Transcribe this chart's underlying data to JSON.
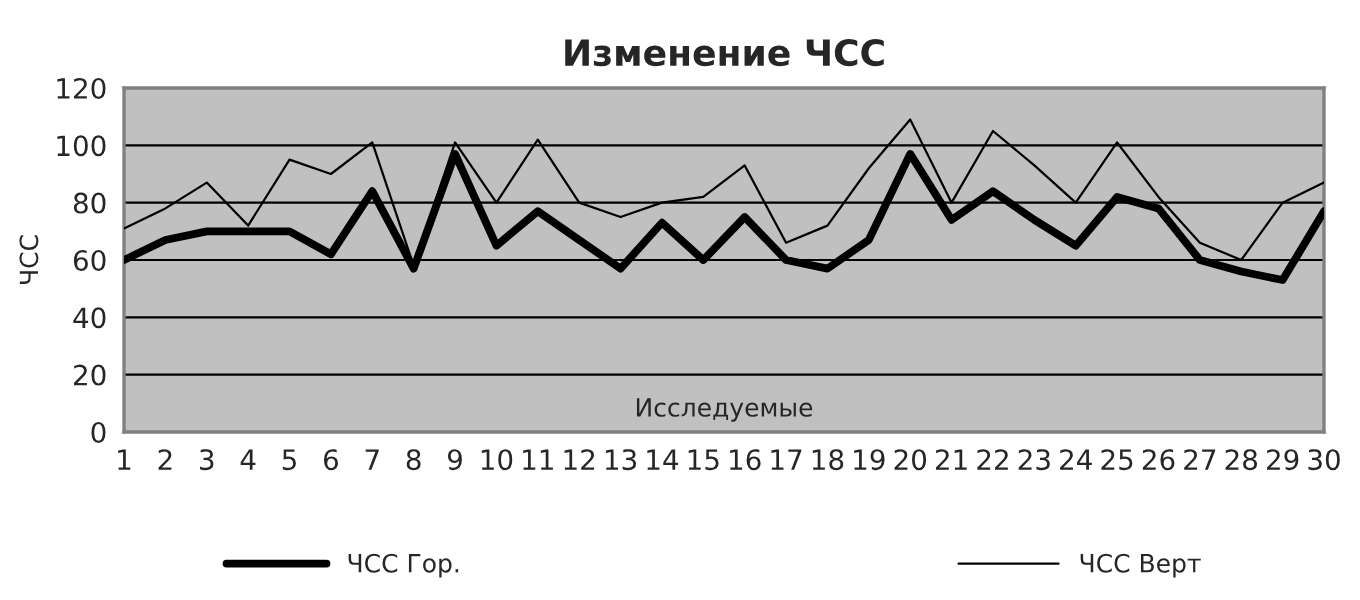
{
  "chart_data": {
    "type": "line",
    "title": "Изменение ЧСС",
    "xlabel": "Исследуемые",
    "ylabel": "ЧСС",
    "categories": [
      "1",
      "2",
      "3",
      "4",
      "5",
      "6",
      "7",
      "8",
      "9",
      "10",
      "11",
      "12",
      "13",
      "14",
      "15",
      "16",
      "17",
      "18",
      "19",
      "20",
      "21",
      "22",
      "23",
      "24",
      "25",
      "26",
      "27",
      "28",
      "29",
      "30"
    ],
    "series": [
      {
        "name": "ЧСС Гор.",
        "color": "#000000",
        "values": [
          60,
          67,
          70,
          70,
          70,
          62,
          84,
          57,
          97,
          65,
          77,
          67,
          57,
          73,
          60,
          75,
          60,
          57,
          67,
          97,
          74,
          84,
          74,
          65,
          82,
          78,
          60,
          56,
          53,
          77
        ]
      },
      {
        "name": "ЧСС Верт",
        "color": "#000000",
        "values": [
          71,
          78,
          87,
          72,
          95,
          90,
          101,
          58,
          101,
          80,
          102,
          80,
          75,
          80,
          82,
          93,
          66,
          72,
          92,
          109,
          80,
          105,
          93,
          80,
          101,
          82,
          66,
          60,
          80,
          87
        ]
      }
    ],
    "ylim": [
      0,
      120
    ],
    "yticks": [
      0,
      20,
      40,
      60,
      80,
      100,
      120
    ],
    "grid": "y",
    "legend": "bottom",
    "marker": "none",
    "line_style": "solid"
  }
}
